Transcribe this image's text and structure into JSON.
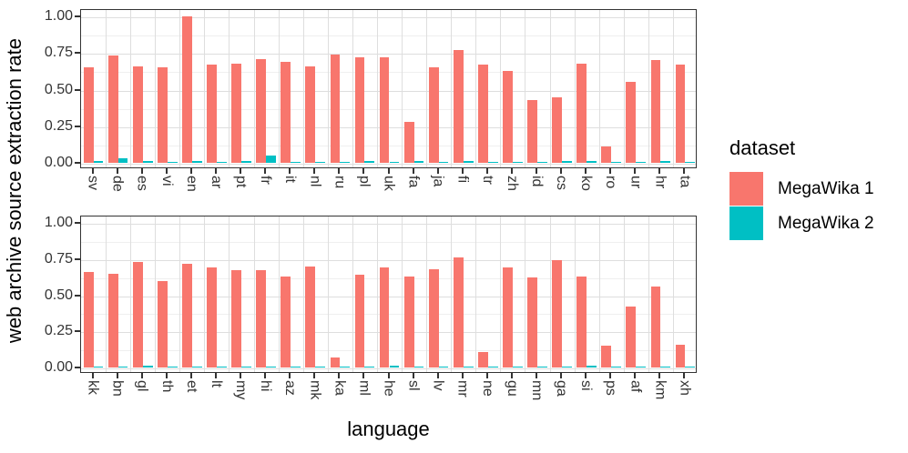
{
  "figure": {
    "y_axis_title": "web archive source extraction rate",
    "x_axis_title": "language",
    "y_tick_labels": [
      "1.00",
      "0.75",
      "0.50",
      "0.25",
      "0.00"
    ],
    "colors": {
      "megawika1": "#F8766D",
      "megawika2": "#00BFC4"
    },
    "legend": {
      "title": "dataset",
      "items": [
        {
          "label": "MegaWika 1",
          "color": "#F8766D"
        },
        {
          "label": "MegaWika 2",
          "color": "#00BFC4"
        }
      ]
    }
  },
  "chart_data": [
    {
      "type": "bar",
      "panel": "top",
      "title": "",
      "xlabel": "language",
      "ylabel": "web archive source extraction rate",
      "ylim": [
        0,
        1
      ],
      "y_major_ticks": [
        0,
        0.25,
        0.5,
        0.75,
        1.0
      ],
      "y_minor_ticks": [
        0.125,
        0.375,
        0.625,
        0.875
      ],
      "grid": "on",
      "legend_position": "right",
      "categories": [
        "sv",
        "de",
        "es",
        "vi",
        "en",
        "ar",
        "pt",
        "fr",
        "it",
        "nl",
        "ru",
        "pl",
        "uk",
        "fa",
        "ja",
        "fi",
        "tr",
        "zh",
        "id",
        "cs",
        "ko",
        "ro",
        "ur",
        "hr",
        "ta"
      ],
      "series": [
        {
          "name": "MegaWika 1",
          "color": "#F8766D",
          "values": [
            0.65,
            0.73,
            0.66,
            0.65,
            1.0,
            0.67,
            0.68,
            0.71,
            0.69,
            0.66,
            0.74,
            0.72,
            0.72,
            0.28,
            0.65,
            0.77,
            0.67,
            0.63,
            0.43,
            0.45,
            0.68,
            0.11,
            0.55,
            0.7,
            0.67
          ]
        },
        {
          "name": "MegaWika 2",
          "color": "#00BFC4",
          "values": [
            0.01,
            0.03,
            0.01,
            0.005,
            0.01,
            0.005,
            0.015,
            0.05,
            0.005,
            0.005,
            0.005,
            0.01,
            0.005,
            0.01,
            0.005,
            0.01,
            0.005,
            0.005,
            0.005,
            0.01,
            0.01,
            0.005,
            0.005,
            0.01,
            0.005
          ]
        }
      ]
    },
    {
      "type": "bar",
      "panel": "bottom",
      "title": "",
      "xlabel": "language",
      "ylabel": "web archive source extraction rate",
      "ylim": [
        0,
        1
      ],
      "y_major_ticks": [
        0,
        0.25,
        0.5,
        0.75,
        1.0
      ],
      "y_minor_ticks": [
        0.125,
        0.375,
        0.625,
        0.875
      ],
      "grid": "on",
      "legend_position": "right",
      "categories": [
        "kk",
        "bn",
        "gl",
        "th",
        "et",
        "lt",
        "my",
        "hi",
        "az",
        "mk",
        "ka",
        "ml",
        "he",
        "sl",
        "lv",
        "mr",
        "ne",
        "gu",
        "mn",
        "ga",
        "si",
        "ps",
        "af",
        "km",
        "xh"
      ],
      "series": [
        {
          "name": "MegaWika 1",
          "color": "#F8766D",
          "values": [
            0.66,
            0.65,
            0.73,
            0.6,
            0.72,
            0.69,
            0.67,
            0.67,
            0.63,
            0.7,
            0.07,
            0.64,
            0.69,
            0.63,
            0.68,
            0.76,
            0.11,
            0.69,
            0.62,
            0.74,
            0.63,
            0.15,
            0.42,
            0.56,
            0.16
          ]
        },
        {
          "name": "MegaWika 2",
          "color": "#00BFC4",
          "values": [
            0.005,
            0.005,
            0.01,
            0.005,
            0.005,
            0.005,
            0.005,
            0.005,
            0.005,
            0.005,
            0.005,
            0.005,
            0.01,
            0.005,
            0.005,
            0.005,
            0.005,
            0.005,
            0.005,
            0.005,
            0.01,
            0.005,
            0.005,
            0.005,
            0.005
          ]
        }
      ]
    }
  ]
}
